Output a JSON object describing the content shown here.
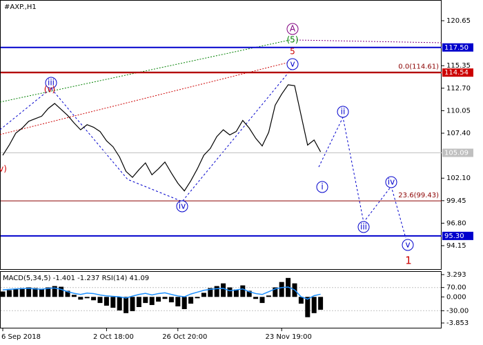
{
  "chart_data": [
    {
      "type": "line",
      "title": "#AXP.,H1",
      "color": "#000000",
      "categories": [
        "6 Sep 2018",
        null,
        null,
        null,
        null,
        null,
        null,
        null,
        null,
        null,
        null,
        null,
        null,
        null,
        null,
        null,
        "2 Oct 18:00",
        null,
        null,
        null,
        null,
        null,
        null,
        null,
        null,
        null,
        null,
        "26 Oct 20:00",
        null,
        null,
        null,
        null,
        null,
        null,
        null,
        null,
        null,
        null,
        null,
        null,
        null,
        null,
        null,
        "23 Nov 19:00",
        null,
        null,
        null,
        null,
        null,
        null
      ],
      "values": [
        104.8,
        106.0,
        107.4,
        108.0,
        108.8,
        109.1,
        109.4,
        110.3,
        110.9,
        110.2,
        109.5,
        108.6,
        107.8,
        108.4,
        108.1,
        107.6,
        106.5,
        105.8,
        104.6,
        102.9,
        102.2,
        103.1,
        103.9,
        102.5,
        103.2,
        104.0,
        102.7,
        101.5,
        100.6,
        101.8,
        103.2,
        104.8,
        105.6,
        107.0,
        107.8,
        107.2,
        107.6,
        108.9,
        108.0,
        106.8,
        105.9,
        107.5,
        110.7,
        112.0,
        113.1,
        113.0,
        109.5,
        106.0,
        106.6,
        105.2
      ],
      "ylim": [
        91.39,
        123.09
      ],
      "yticks": [
        120.65,
        115.35,
        {
          "value": 112.7,
          "label": "112.70"
        },
        110.05,
        {
          "value": 107.4,
          "label": "107.40"
        },
        {
          "value": 102.1,
          "label": "102.10"
        },
        99.45,
        {
          "value": 96.8,
          "label": "96.80"
        },
        94.15
      ],
      "levels": [
        {
          "value": 117.5,
          "label": "117.50",
          "color": "#0000cc",
          "boxed": true
        },
        {
          "value": 114.54,
          "label": "114.54",
          "color": "#cc0000",
          "boxed": true
        },
        {
          "value": 105.09,
          "label": "105.09",
          "color": "#c0c0c0",
          "boxed": true
        },
        {
          "value": 95.3,
          "label": "95.30",
          "color": "#0000cc",
          "boxed": true
        },
        {
          "value": 114.61,
          "label": "0.0(114.61)",
          "color": "#8b0000",
          "boxed": false
        },
        {
          "value": 99.43,
          "label": "23.6(99.43)",
          "color": "#8b0000",
          "boxed": false
        }
      ],
      "annotations": [
        {
          "text": "iii",
          "color": "#0000cc"
        },
        {
          "text": "(v)",
          "color": "#cc0000"
        },
        {
          "text": "iv",
          "color": "#0000cc"
        },
        {
          "text": "v",
          "color": "#0000cc"
        },
        {
          "text": "5",
          "color": "#cc0000"
        },
        {
          "text": "(5)",
          "color": "#008000"
        },
        {
          "text": "A",
          "color": "#800080"
        },
        {
          "text": "i",
          "color": "#0000cc"
        },
        {
          "text": "ii",
          "color": "#0000cc"
        },
        {
          "text": "iii",
          "color": "#0000cc"
        },
        {
          "text": "iv",
          "color": "#0000cc"
        },
        {
          "text": "v",
          "color": "#0000cc"
        },
        {
          "text": "1",
          "color": "#cc0000"
        },
        {
          "text": "v)",
          "color": "#cc0000"
        }
      ]
    },
    {
      "type": "bar",
      "title": "MACD(5,34,5) -1.401 -1.237 RSI(14) 41.09",
      "color": "#000000",
      "values": [
        0.8,
        1.0,
        1.2,
        1.3,
        1.4,
        1.3,
        1.2,
        1.4,
        1.6,
        1.5,
        0.9,
        0.3,
        -0.4,
        -0.2,
        -0.5,
        -0.9,
        -1.3,
        -1.6,
        -2.0,
        -2.4,
        -2.1,
        -1.5,
        -0.9,
        -1.2,
        -0.7,
        -0.3,
        -0.8,
        -1.4,
        -1.8,
        -1.0,
        -0.2,
        0.6,
        1.3,
        1.6,
        2.0,
        1.4,
        1.1,
        1.7,
        0.9,
        -0.3,
        -0.9,
        0.2,
        1.4,
        2.2,
        2.8,
        2.0,
        -1.0,
        -3.0,
        -2.4,
        -1.9
      ],
      "ylim": [
        -4.56,
        3.7
      ],
      "yticks": [
        3.293,
        {
          "value": 0,
          "label": "0.000"
        },
        -3.853
      ],
      "rsi": {
        "color": "#1e90ff",
        "axis": "y2",
        "values": [
          60,
          62,
          64,
          65,
          66,
          64,
          63,
          66,
          68,
          62,
          52,
          45,
          40,
          46,
          44,
          38,
          34,
          32,
          30,
          25,
          33,
          40,
          45,
          38,
          44,
          47,
          40,
          34,
          30,
          42,
          50,
          58,
          62,
          65,
          66,
          56,
          60,
          64,
          52,
          44,
          40,
          52,
          64,
          70,
          72,
          60,
          30,
          20,
          35,
          41.09
        ]
      },
      "y2lim": [
        -103.5,
        137.6
      ],
      "y2ticks": [
        {
          "value": 70,
          "label": "70.00"
        },
        {
          "value": -30,
          "label": "-30.00"
        }
      ]
    }
  ]
}
